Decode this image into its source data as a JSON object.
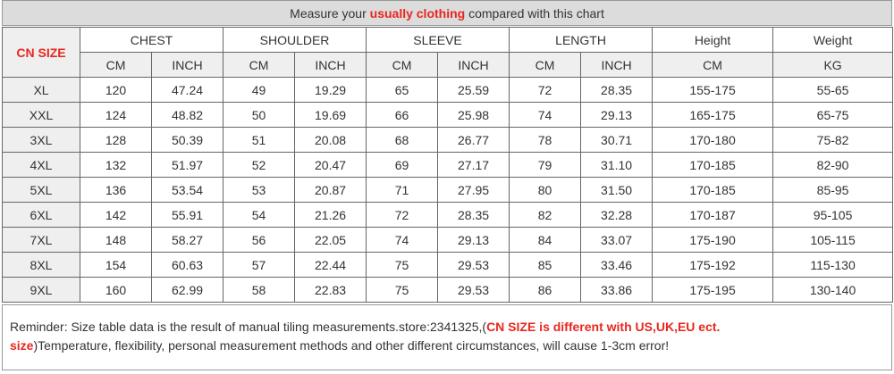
{
  "title": {
    "before": "Measure your",
    "highlight": "usually clothing",
    "after": "compared with this chart"
  },
  "table": {
    "size_header": "CN SIZE",
    "groups": [
      "CHEST",
      "SHOULDER",
      "SLEEVE",
      "LENGTH",
      "Height",
      "Weight"
    ],
    "units": [
      "CM",
      "INCH",
      "CM",
      "INCH",
      "CM",
      "INCH",
      "CM",
      "INCH",
      "CM",
      "KG"
    ],
    "rows": [
      [
        "XL",
        "120",
        "47.24",
        "49",
        "19.29",
        "65",
        "25.59",
        "72",
        "28.35",
        "155-175",
        "55-65"
      ],
      [
        "XXL",
        "124",
        "48.82",
        "50",
        "19.69",
        "66",
        "25.98",
        "74",
        "29.13",
        "165-175",
        "65-75"
      ],
      [
        "3XL",
        "128",
        "50.39",
        "51",
        "20.08",
        "68",
        "26.77",
        "78",
        "30.71",
        "170-180",
        "75-82"
      ],
      [
        "4XL",
        "132",
        "51.97",
        "52",
        "20.47",
        "69",
        "27.17",
        "79",
        "31.10",
        "170-185",
        "82-90"
      ],
      [
        "5XL",
        "136",
        "53.54",
        "53",
        "20.87",
        "71",
        "27.95",
        "80",
        "31.50",
        "170-185",
        "85-95"
      ],
      [
        "6XL",
        "142",
        "55.91",
        "54",
        "21.26",
        "72",
        "28.35",
        "82",
        "32.28",
        "170-187",
        "95-105"
      ],
      [
        "7XL",
        "148",
        "58.27",
        "56",
        "22.05",
        "74",
        "29.13",
        "84",
        "33.07",
        "175-190",
        "105-115"
      ],
      [
        "8XL",
        "154",
        "60.63",
        "57",
        "22.44",
        "75",
        "29.53",
        "85",
        "33.46",
        "175-192",
        "115-130"
      ],
      [
        "9XL",
        "160",
        "62.99",
        "58",
        "22.83",
        "75",
        "29.53",
        "86",
        "33.86",
        "175-195",
        "130-140"
      ]
    ]
  },
  "reminder": {
    "before": "Reminder: Size table data is the result of manual tiling measurements.store:2341325,(",
    "highlight": "CN SIZE is different with US,UK,EU ect. size",
    "after": ")Temperature, flexibility, personal measurement methods and other different circumstances, will cause 1-3cm error!"
  }
}
